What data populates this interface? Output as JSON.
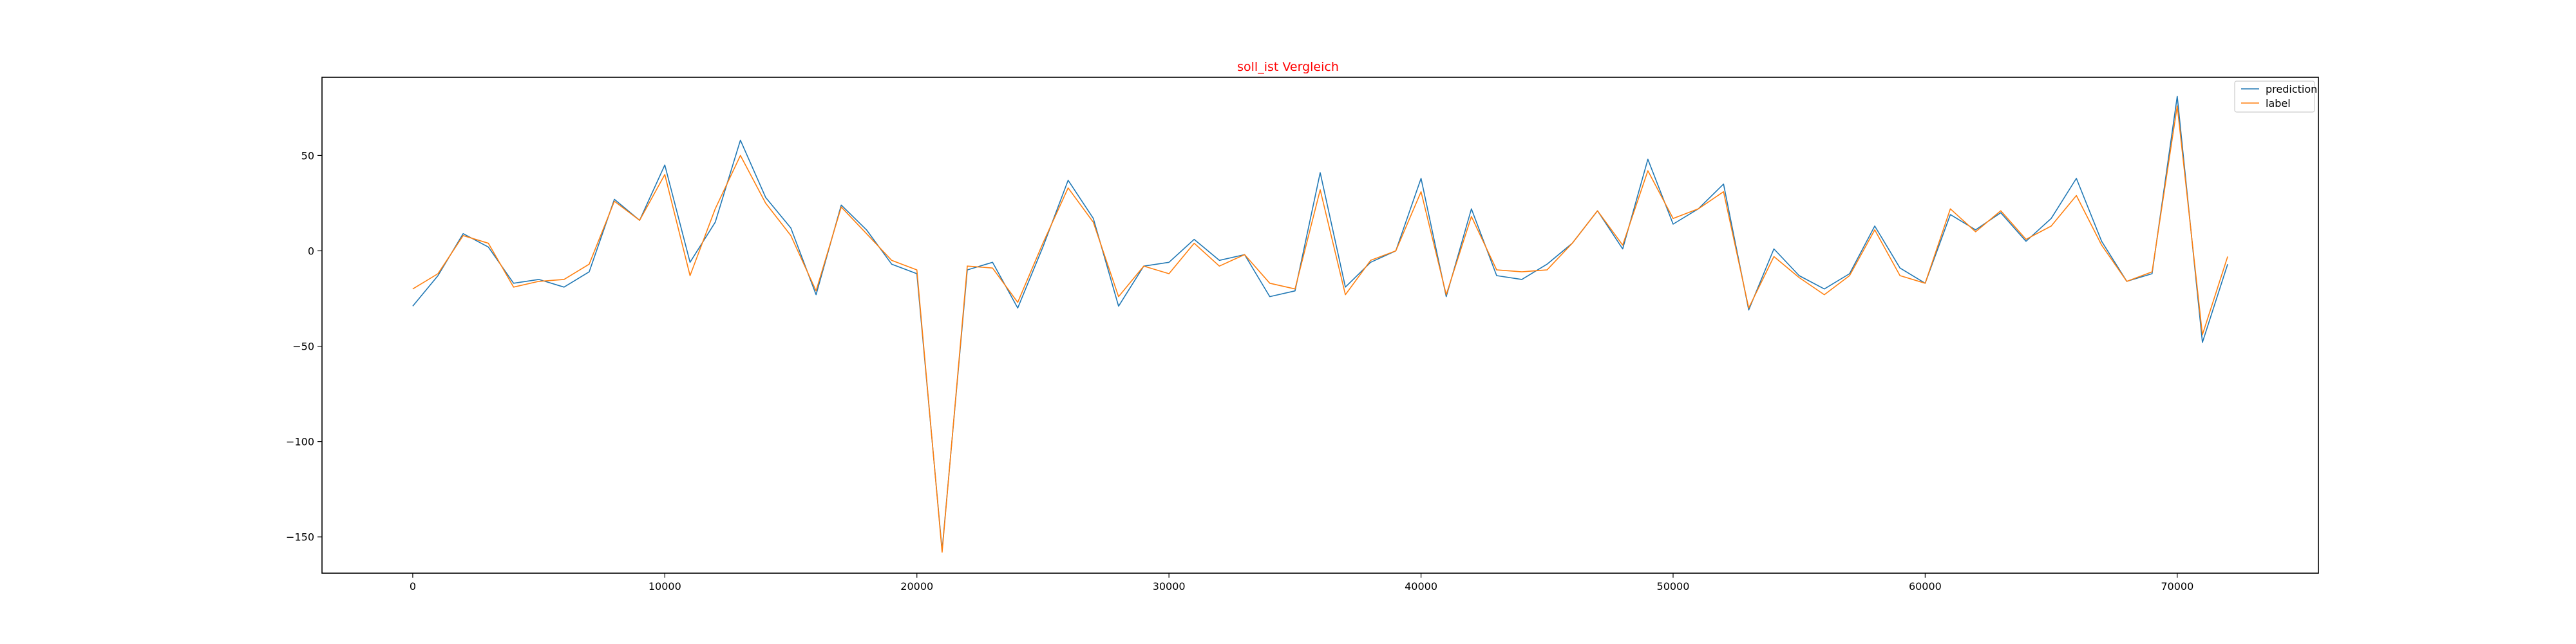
{
  "chart_data": {
    "type": "line",
    "title": "soll_ist Vergleich",
    "title_color": "#ff0000",
    "xlabel": "",
    "ylabel": "",
    "xlim": [
      -3600,
      75600
    ],
    "ylim": [
      -169,
      91
    ],
    "xticks": [
      0,
      10000,
      20000,
      30000,
      40000,
      50000,
      60000,
      70000
    ],
    "yticks": [
      -150,
      -100,
      -50,
      0,
      50
    ],
    "grid": false,
    "legend_position": "top-right",
    "x": [
      0,
      1000,
      2000,
      3000,
      4000,
      5000,
      6000,
      7000,
      8000,
      9000,
      10000,
      11000,
      12000,
      13000,
      14000,
      15000,
      16000,
      17000,
      18000,
      19000,
      20000,
      21000,
      22000,
      23000,
      24000,
      25000,
      26000,
      27000,
      28000,
      29000,
      30000,
      31000,
      32000,
      33000,
      34000,
      35000,
      36000,
      37000,
      38000,
      39000,
      40000,
      41000,
      42000,
      43000,
      44000,
      45000,
      46000,
      47000,
      48000,
      49000,
      50000,
      51000,
      52000,
      53000,
      54000,
      55000,
      56000,
      57000,
      58000,
      59000,
      60000,
      61000,
      62000,
      63000,
      64000,
      65000,
      66000,
      67000,
      68000,
      69000,
      70000,
      71000,
      72000
    ],
    "series": [
      {
        "name": "prediction",
        "color": "#1f77b4",
        "values": [
          -29,
          -13,
          9,
          2,
          -17,
          -15,
          -19,
          -11,
          27,
          16,
          45,
          -6,
          15,
          58,
          28,
          12,
          -23,
          24,
          11,
          -7,
          -12,
          -157,
          -10,
          -6,
          -30,
          2,
          37,
          17,
          -29,
          -8,
          -6,
          6,
          -5,
          -2,
          -24,
          -21,
          41,
          -19,
          -6,
          0,
          38,
          -24,
          22,
          -13,
          -15,
          -7,
          4,
          21,
          1,
          48,
          14,
          22,
          35,
          -31,
          1,
          -13,
          -20,
          -12,
          13,
          -9,
          -17,
          19,
          11,
          20,
          5,
          17,
          38,
          5,
          -16,
          -12,
          81,
          -48,
          -7
        ]
      },
      {
        "name": "label",
        "color": "#ff7f0e",
        "values": [
          -20,
          -12,
          8,
          4,
          -19,
          -16,
          -15,
          -7,
          26,
          16,
          40,
          -13,
          22,
          50,
          25,
          8,
          -21,
          23,
          9,
          -5,
          -10,
          -158,
          -8,
          -9,
          -27,
          4,
          33,
          15,
          -24,
          -8,
          -12,
          4,
          -8,
          -2,
          -17,
          -20,
          32,
          -23,
          -5,
          0,
          31,
          -23,
          18,
          -10,
          -11,
          -10,
          4,
          21,
          3,
          42,
          17,
          22,
          31,
          -30,
          -3,
          -14,
          -23,
          -13,
          11,
          -13,
          -17,
          22,
          10,
          21,
          6,
          13,
          29,
          3,
          -16,
          -11,
          76,
          -44,
          -3
        ]
      }
    ]
  }
}
